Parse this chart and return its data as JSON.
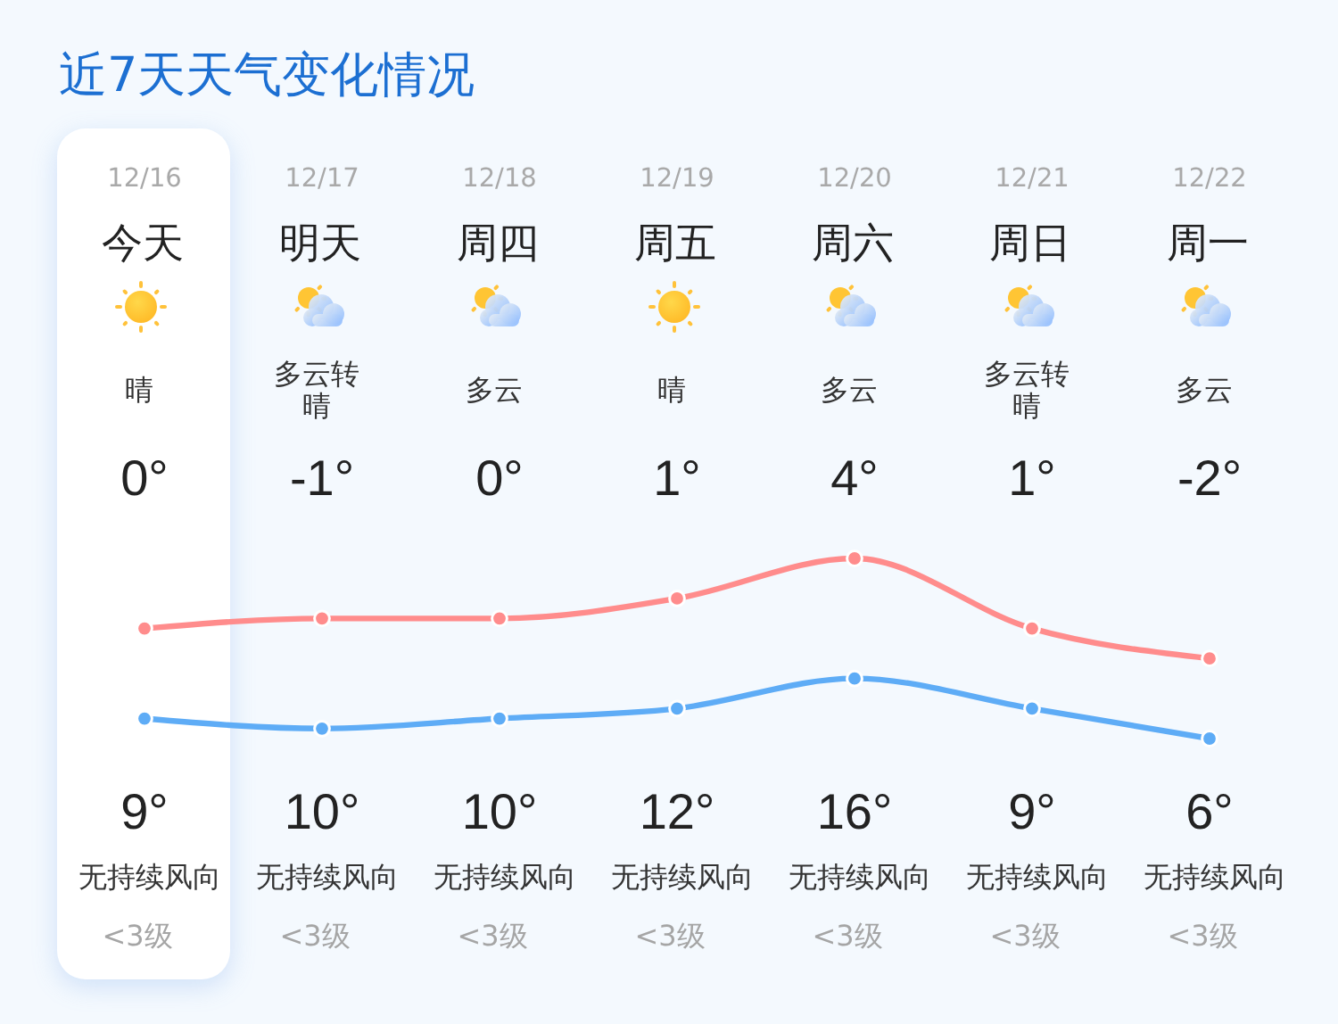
{
  "chart_data": {
    "type": "line",
    "title": "近7天天气变化情况",
    "categories": [
      "12/16",
      "12/17",
      "12/18",
      "12/19",
      "12/20",
      "12/21",
      "12/22"
    ],
    "annotations": [
      "今天",
      "明天",
      "周四",
      "周五",
      "周六",
      "周日",
      "周一",
      "晴",
      "多云转晴",
      "多云",
      "晴",
      "多云",
      "多云转晴",
      "多云",
      "无持续风向",
      "无持续风向",
      "无持续风向",
      "无持续风向",
      "无持续风向",
      "无持续风向",
      "无持续风向",
      "<3级",
      "<3级",
      "<3级",
      "<3级",
      "<3级",
      "<3级",
      "<3级"
    ],
    "series": [
      {
        "color": "#5eacf6",
        "values": [
          0,
          -1,
          0,
          1,
          4,
          1,
          -2
        ],
        "value_labels": [
          "0°",
          "-1°",
          "0°",
          "1°",
          "4°",
          "1°",
          "-2°"
        ]
      },
      {
        "color": "#ff8c8c",
        "values": [
          9,
          10,
          10,
          12,
          16,
          9,
          6
        ],
        "value_labels": [
          "9°",
          "10°",
          "10°",
          "12°",
          "16°",
          "9°",
          "6°"
        ]
      }
    ],
    "bands": [
      {
        "axis": "x",
        "from": "12/16",
        "to": "12/16",
        "color": "#ffffff"
      }
    ],
    "marker": "circle",
    "line_style": "solid"
  }
}
